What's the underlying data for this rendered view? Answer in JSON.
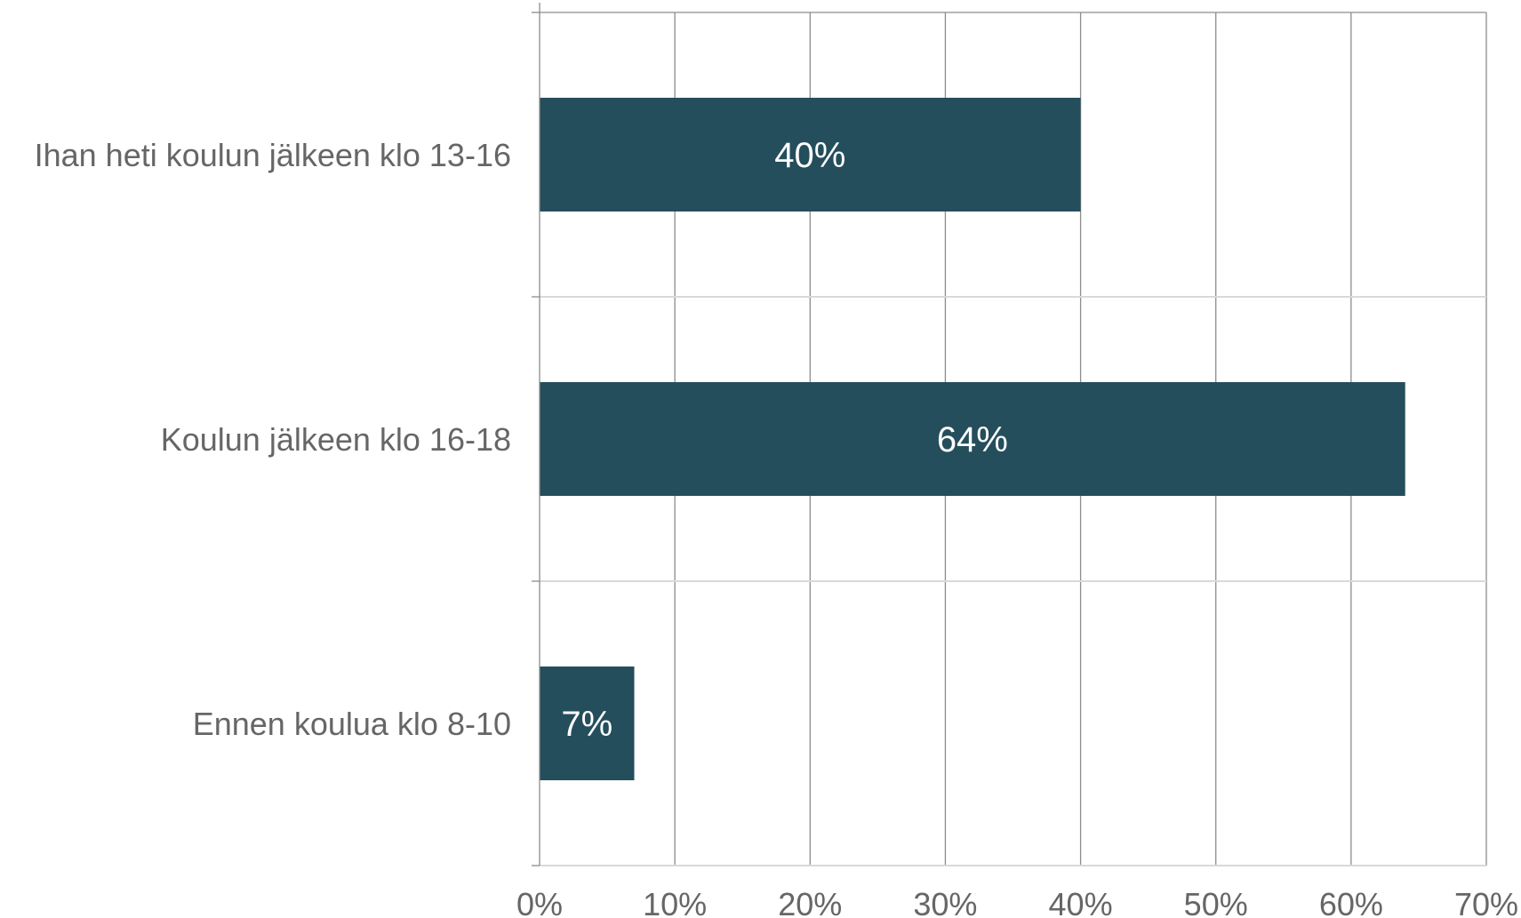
{
  "chart_data": {
    "type": "bar",
    "orientation": "horizontal",
    "categories": [
      "Ihan heti koulun jälkeen klo 13-16",
      "Koulun jälkeen klo 16-18",
      "Ennen koulua klo 8-10"
    ],
    "values": [
      40,
      64,
      7
    ],
    "data_labels": [
      "40%",
      "64%",
      "7%"
    ],
    "xlim": [
      0,
      70
    ],
    "x_ticks": [
      0,
      10,
      20,
      30,
      40,
      50,
      60,
      70
    ],
    "x_tick_labels": [
      "0%",
      "10%",
      "20%",
      "30%",
      "40%",
      "50%",
      "60%",
      "70%"
    ],
    "title": "",
    "xlabel": "",
    "ylabel": "",
    "grid": true,
    "legend": "none",
    "bar_color": "#244e5c"
  }
}
